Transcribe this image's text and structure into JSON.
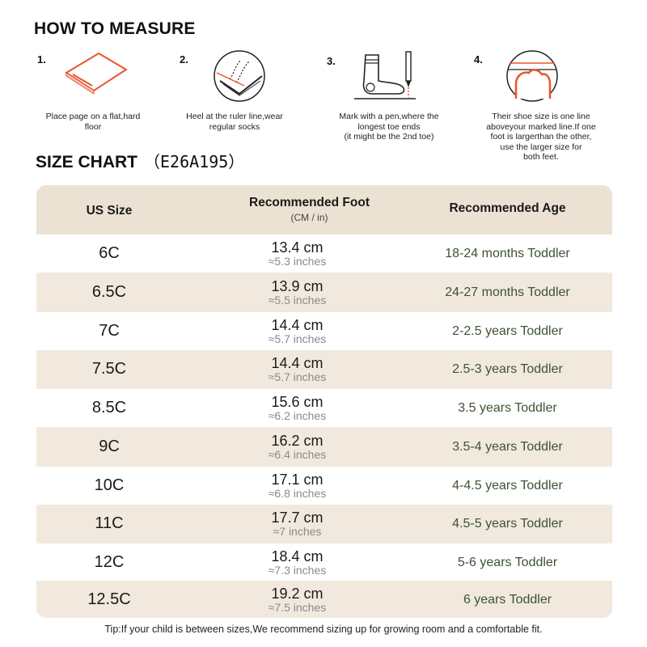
{
  "measure": {
    "title": "HOW TO MEASURE",
    "steps": [
      {
        "num": "1.",
        "caption": [
          "Place page on a flat,hard",
          "floor"
        ],
        "icon": "paper-on-floor-icon"
      },
      {
        "num": "2.",
        "caption": [
          "Heel at the ruler line,wear",
          "regular socks"
        ],
        "icon": "heel-at-line-icon"
      },
      {
        "num": "3.",
        "caption": [
          "Mark with a pen,where the",
          "longest toe ends",
          "(it might be the 2nd toe)"
        ],
        "icon": "sock-and-pen-icon"
      },
      {
        "num": "4.",
        "caption": [
          "Their shoe size is one line",
          "aboveyour marked line.If one",
          "foot is largerthan the other,",
          "use the larger size for",
          "both feet."
        ],
        "icon": "toe-line-icon"
      }
    ]
  },
  "size_chart": {
    "title": "SIZE CHART",
    "code": "（E26A195）",
    "headers": {
      "us_size": "US Size",
      "foot": "Recommended Foot",
      "foot_unit": "(CM / in)",
      "age": "Recommended Age"
    },
    "rows": [
      {
        "size": "6C",
        "cm": "13.4 cm",
        "inches": "≈5.3 inches",
        "age": "18-24 months Toddler"
      },
      {
        "size": "6.5C",
        "cm": "13.9 cm",
        "inches": "≈5.5 inches",
        "age": "24-27 months Toddler"
      },
      {
        "size": "7C",
        "cm": "14.4 cm",
        "inches": "≈5.7 inches",
        "age": "2-2.5 years Toddler"
      },
      {
        "size": "7.5C",
        "cm": "14.4 cm",
        "inches": "≈5.7 inches",
        "age": "2.5-3 years Toddler"
      },
      {
        "size": "8.5C",
        "cm": "15.6 cm",
        "inches": "≈6.2 inches",
        "age": "3.5 years Toddler"
      },
      {
        "size": "9C",
        "cm": "16.2 cm",
        "inches": "≈6.4 inches",
        "age": "3.5-4 years Toddler"
      },
      {
        "size": "10C",
        "cm": "17.1 cm",
        "inches": "≈6.8 inches",
        "age": "4-4.5 years Toddler"
      },
      {
        "size": "11C",
        "cm": "17.7 cm",
        "inches": "≈7 inches",
        "age": "4.5-5 years Toddler"
      },
      {
        "size": "12C",
        "cm": "18.4 cm",
        "inches": "≈7.3 inches",
        "age": "5-6 years Toddler"
      },
      {
        "size": "12.5C",
        "cm": "19.2 cm",
        "inches": "≈7.5 inches",
        "age": "6 years Toddler"
      }
    ]
  },
  "tip": "Tip:If your child is between sizes,We recommend sizing up for growing room and a comfortable fit.",
  "colors": {
    "accent_orange": "#e8552d",
    "header_beige": "#ece2d3",
    "row_beige": "#f1e9dd",
    "age_text": "#3e5236"
  }
}
